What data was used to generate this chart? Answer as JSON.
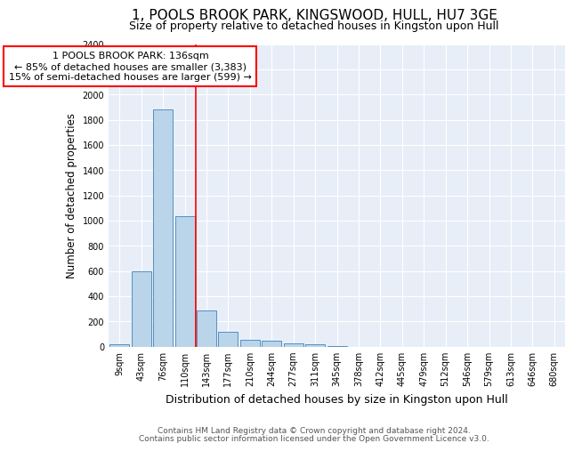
{
  "title": "1, POOLS BROOK PARK, KINGSWOOD, HULL, HU7 3GE",
  "subtitle": "Size of property relative to detached houses in Kingston upon Hull",
  "xlabel": "Distribution of detached houses by size in Kingston upon Hull",
  "ylabel": "Number of detached properties",
  "footnote1": "Contains HM Land Registry data © Crown copyright and database right 2024.",
  "footnote2": "Contains public sector information licensed under the Open Government Licence v3.0.",
  "categories": [
    "9sqm",
    "43sqm",
    "76sqm",
    "110sqm",
    "143sqm",
    "177sqm",
    "210sqm",
    "244sqm",
    "277sqm",
    "311sqm",
    "345sqm",
    "378sqm",
    "412sqm",
    "445sqm",
    "479sqm",
    "512sqm",
    "546sqm",
    "579sqm",
    "613sqm",
    "646sqm",
    "680sqm"
  ],
  "values": [
    20,
    600,
    1880,
    1035,
    285,
    120,
    50,
    45,
    28,
    20,
    5,
    0,
    0,
    0,
    0,
    0,
    0,
    0,
    0,
    0,
    0
  ],
  "bar_color": "#bad4ea",
  "bar_edge_color": "#5590c0",
  "red_line_x": 3.5,
  "annotation_line1": "1 POOLS BROOK PARK: 136sqm",
  "annotation_line2": "← 85% of detached houses are smaller (3,383)",
  "annotation_line3": "15% of semi-detached houses are larger (599) →",
  "annotation_box_color": "white",
  "annotation_box_edge_color": "red",
  "red_line_color": "red",
  "ylim": [
    0,
    2400
  ],
  "yticks": [
    0,
    200,
    400,
    600,
    800,
    1000,
    1200,
    1400,
    1600,
    1800,
    2000,
    2200,
    2400
  ],
  "bg_color": "#e8eef8",
  "grid_color": "white",
  "title_fontsize": 11,
  "subtitle_fontsize": 9,
  "ylabel_fontsize": 8.5,
  "xlabel_fontsize": 9,
  "tick_fontsize": 7,
  "footnote_fontsize": 6.5,
  "annot_fontsize": 8
}
